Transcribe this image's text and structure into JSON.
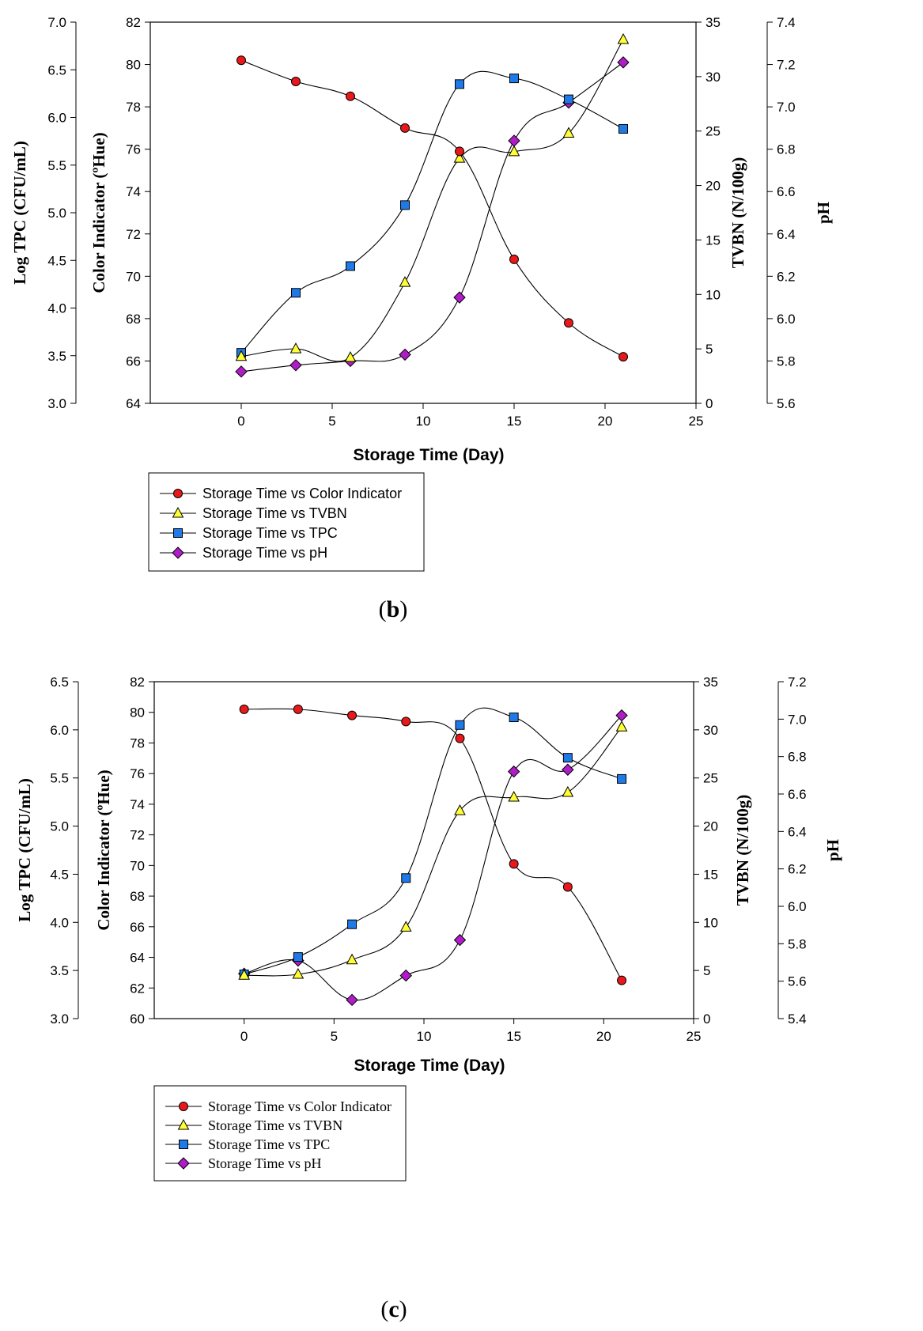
{
  "chart_data": [
    {
      "type": "line",
      "panel_label": "b",
      "xlabel": "Storage Time (Day)",
      "x_ticks": [
        "0",
        "5",
        "10",
        "15",
        "20",
        "25"
      ],
      "xlim": [
        -5,
        25
      ],
      "axes": {
        "tpc": {
          "label": "Log TPC (CFU/mL)",
          "range": [
            3.0,
            7.0
          ],
          "ticks": [
            "3.0",
            "3.5",
            "4.0",
            "4.5",
            "5.0",
            "5.5",
            "6.0",
            "6.5",
            "7.0"
          ]
        },
        "color": {
          "label": "Color Indicator (ºHue)",
          "range": [
            64,
            82
          ],
          "ticks": [
            "64",
            "66",
            "68",
            "70",
            "72",
            "74",
            "76",
            "78",
            "80",
            "82"
          ]
        },
        "tvbn": {
          "label": "TVBN (N/100g)",
          "range": [
            0,
            35
          ],
          "ticks": [
            "0",
            "5",
            "10",
            "15",
            "20",
            "25",
            "30",
            "35"
          ]
        },
        "ph": {
          "label": "pH",
          "range": [
            5.6,
            7.4
          ],
          "ticks": [
            "5.6",
            "5.8",
            "6.0",
            "6.2",
            "6.4",
            "6.6",
            "6.8",
            "7.0",
            "7.2",
            "7.4"
          ]
        }
      },
      "x": [
        0,
        3,
        6,
        9,
        12,
        15,
        18,
        21
      ],
      "series": [
        {
          "name": "Storage Time vs Color Indicator",
          "axis": "color",
          "marker": "circle",
          "color": "#e8191b",
          "values": [
            80.2,
            79.2,
            78.5,
            77.0,
            75.9,
            70.8,
            67.8,
            66.2
          ]
        },
        {
          "name": "Storage Time vs TVBN",
          "axis": "tvbn",
          "marker": "triangle",
          "color": "#ffff33",
          "values": [
            4.3,
            5.0,
            4.2,
            11.1,
            22.5,
            23.1,
            24.8,
            33.4
          ]
        },
        {
          "name": "Storage Time vs TPC",
          "axis": "tpc",
          "marker": "square",
          "color": "#1f7ae8",
          "values": [
            3.53,
            4.16,
            4.44,
            5.08,
            6.35,
            6.41,
            6.19,
            5.88
          ]
        },
        {
          "name": "Storage Time vs pH",
          "axis": "ph",
          "marker": "diamond",
          "color": "#b01cc7",
          "values": [
            5.75,
            5.78,
            5.8,
            5.83,
            6.1,
            6.84,
            7.02,
            7.21
          ]
        }
      ]
    },
    {
      "type": "line",
      "panel_label": "c",
      "xlabel": "Storage Time (Day)",
      "x_ticks": [
        "0",
        "5",
        "10",
        "15",
        "20",
        "25"
      ],
      "xlim": [
        -5,
        25
      ],
      "axes": {
        "tpc": {
          "label": "Log TPC (CFU/mL)",
          "range": [
            3.0,
            6.5
          ],
          "ticks": [
            "3.0",
            "3.5",
            "4.0",
            "4.5",
            "5.0",
            "5.5",
            "6.0",
            "6.5"
          ]
        },
        "color": {
          "label": "Color Indicator (ºHue)",
          "range": [
            60,
            82
          ],
          "ticks": [
            "60",
            "62",
            "64",
            "66",
            "68",
            "70",
            "72",
            "74",
            "76",
            "78",
            "80",
            "82"
          ]
        },
        "tvbn": {
          "label": "TVBN (N/100g)",
          "range": [
            0,
            35
          ],
          "ticks": [
            "0",
            "5",
            "10",
            "15",
            "20",
            "25",
            "30",
            "35"
          ]
        },
        "ph": {
          "label": "pH",
          "range": [
            5.4,
            7.2
          ],
          "ticks": [
            "5.4",
            "5.6",
            "5.8",
            "6.0",
            "6.2",
            "6.4",
            "6.6",
            "6.8",
            "7.0",
            "7.2"
          ]
        }
      },
      "x": [
        0,
        3,
        6,
        9,
        12,
        15,
        18,
        21
      ],
      "series": [
        {
          "name": "Storage Time vs Color Indicator",
          "axis": "color",
          "marker": "circle",
          "color": "#e8191b",
          "values": [
            80.2,
            80.2,
            79.8,
            79.4,
            78.3,
            70.1,
            68.6,
            62.5
          ]
        },
        {
          "name": "Storage Time vs TVBN",
          "axis": "tvbn",
          "marker": "triangle",
          "color": "#ffff33",
          "values": [
            4.5,
            4.6,
            6.1,
            9.5,
            21.6,
            23.0,
            23.5,
            30.3
          ]
        },
        {
          "name": "Storage Time vs TPC",
          "axis": "tpc",
          "marker": "square",
          "color": "#1f7ae8",
          "values": [
            3.46,
            3.64,
            3.98,
            4.46,
            6.05,
            6.13,
            5.71,
            5.49
          ]
        },
        {
          "name": "Storage Time vs pH",
          "axis": "ph",
          "marker": "diamond",
          "color": "#b01cc7",
          "values": [
            5.64,
            5.71,
            5.5,
            5.63,
            5.82,
            6.72,
            6.73,
            7.02
          ]
        }
      ]
    }
  ],
  "captions": {
    "b_open": "(",
    "b_letter": "b",
    "b_close": ")",
    "c_open": "(",
    "c_letter": "c",
    "c_close": ")"
  }
}
